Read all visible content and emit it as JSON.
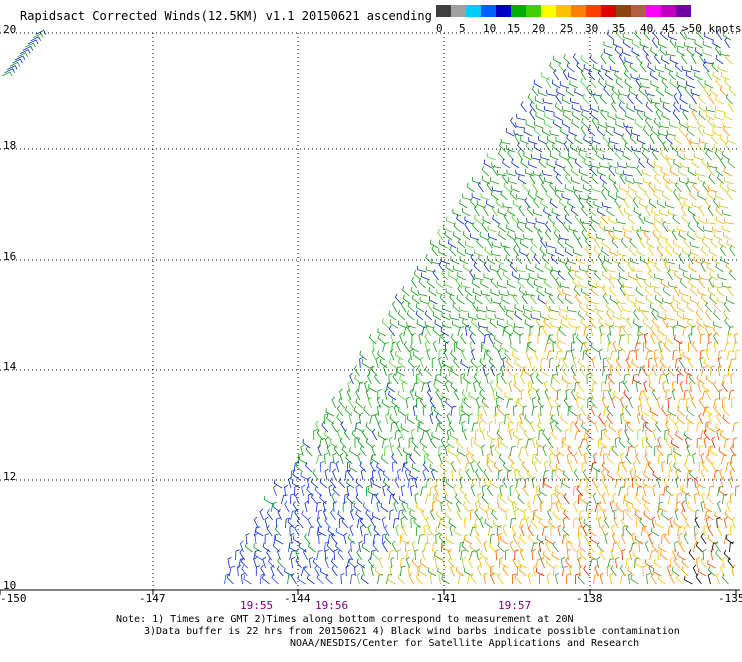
{
  "title": "Rapidsact Corrected Winds(12.5KM) v1.1 20150621 ascending",
  "colorbar": {
    "labels": [
      "0",
      "5",
      "10",
      "15",
      "20",
      "25",
      "30",
      "35",
      "40",
      "45",
      ">50 knots"
    ],
    "colors": [
      "#404040",
      "#a0a0a0",
      "#00ccff",
      "#0060ff",
      "#0000c0",
      "#00b000",
      "#40d000",
      "#ffff00",
      "#ffc000",
      "#ff8000",
      "#ff4000",
      "#e00000",
      "#8b4513",
      "#b06040",
      "#ff00ff",
      "#c000c0",
      "#7000a0"
    ]
  },
  "map": {
    "lon_ticks": [
      "-150",
      "-147",
      "-144",
      "-141",
      "-138",
      "-135"
    ],
    "lat_ticks": [
      "10",
      "12",
      "14",
      "16",
      "18",
      "20"
    ],
    "times": [
      "19:55",
      "19:56",
      "19:57"
    ]
  },
  "notes": {
    "line1": "Note: 1) Times are GMT 2)Times along bottom correspond to measurement at 20N",
    "line2": "3)Data buffer is 22 hrs from 20150621 4) Black wind barbs indicate possible contamination",
    "line3": "NOAA/NESDIS/Center for Satellite Applications and Research"
  }
}
